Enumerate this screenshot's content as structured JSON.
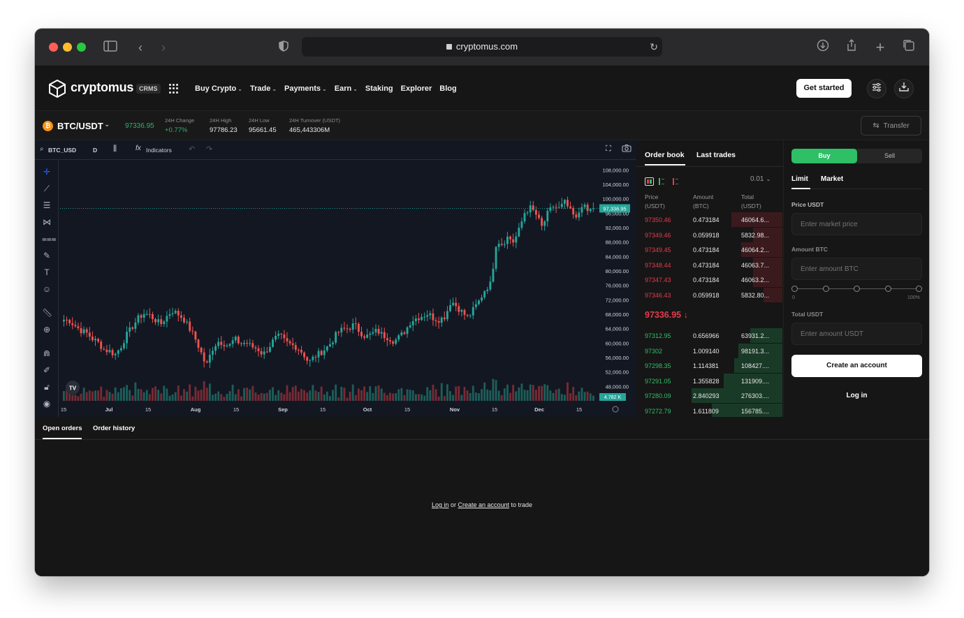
{
  "browser": {
    "url": "cryptomus.com"
  },
  "header": {
    "logo_text": "cryptomus",
    "logo_badge": "CRMS",
    "nav": [
      {
        "label": "Buy Crypto",
        "dropdown": true
      },
      {
        "label": "Trade",
        "dropdown": true
      },
      {
        "label": "Payments",
        "dropdown": true
      },
      {
        "label": "Earn",
        "dropdown": true
      },
      {
        "label": "Staking",
        "dropdown": false
      },
      {
        "label": "Explorer",
        "dropdown": false
      },
      {
        "label": "Blog",
        "dropdown": false
      }
    ],
    "get_started": "Get started"
  },
  "ticker": {
    "coin_symbol": "₿",
    "pair": "BTC/USDT",
    "last_price": "97336.95",
    "change_label": "24H Change",
    "change_value": "+0.77%",
    "high_label": "24H High",
    "high_value": "97786.23",
    "low_label": "24H Low",
    "low_value": "95661.45",
    "turnover_label": "24H Turnover (USDT)",
    "turnover_value": "465,443306M",
    "transfer": "Transfer"
  },
  "chart": {
    "symbol": "BTC_USD",
    "interval": "D",
    "indicators": "Indicators",
    "price_tag": "97,336.95",
    "volume_tag": "4.782 K",
    "tv_logo": "TV",
    "y_ticks": [
      "108,000.00",
      "104,000.00",
      "100,000.00",
      "96,000.00",
      "92,000.00",
      "88,000.00",
      "84,000.00",
      "80,000.00",
      "76,000.00",
      "72,000.00",
      "68,000.00",
      "64,000.00",
      "60,000.00",
      "56,000.00",
      "52,000.00",
      "48,000.00"
    ],
    "x_ticks": [
      "15",
      "Jul",
      "15",
      "Aug",
      "15",
      "Sep",
      "15",
      "Oct",
      "15",
      "Nov",
      "15",
      "Dec",
      "15"
    ]
  },
  "chart_data": {
    "type": "candlestick",
    "title": "",
    "xlabel": "",
    "ylabel": "",
    "ylim": [
      44000,
      110000
    ],
    "x_range": [
      "Jun 15",
      "Dec 18"
    ],
    "last_price": 97336.95,
    "close_path": [
      66500,
      66200,
      64800,
      63500,
      62800,
      61200,
      60200,
      58200,
      57800,
      56800,
      59000,
      62200,
      64500,
      66800,
      68200,
      67800,
      66500,
      65200,
      67300,
      69000,
      68100,
      66800,
      64200,
      61500,
      57800,
      53500,
      58200,
      60500,
      60100,
      59100,
      61200,
      59800,
      60200,
      59000,
      58500,
      56800,
      58900,
      61200,
      62000,
      60200,
      59500,
      58800,
      57200,
      54600,
      56200,
      57300,
      58500,
      60200,
      62800,
      63800,
      64100,
      65200,
      63100,
      61800,
      62400,
      63500,
      62200,
      61500,
      60500,
      61800,
      63500,
      66200,
      67000,
      67600,
      68200,
      66800,
      66500,
      67500,
      71800,
      70200,
      68500,
      67000,
      69500,
      71800,
      75000,
      76500,
      88500,
      87500,
      89500,
      88000,
      91500,
      96500,
      97500,
      95500,
      92000,
      96000,
      98000,
      97300,
      99000,
      96500,
      94200,
      98500,
      96500,
      97336
    ]
  },
  "orderbook": {
    "tab_active": "Order book",
    "tab_other": "Last trades",
    "precision": "0.01",
    "headers": {
      "price": [
        "Price",
        "(USDT)"
      ],
      "amount": [
        "Amount",
        "(BTC)"
      ],
      "total": [
        "Total",
        "(USDT)"
      ]
    },
    "asks": [
      {
        "price": "97350.46",
        "amount": "0.473184",
        "total": "46064.6...",
        "depth": 0.35
      },
      {
        "price": "97349.46",
        "amount": "0.059918",
        "total": "5832.98...",
        "depth": 0.2
      },
      {
        "price": "97349.45",
        "amount": "0.473184",
        "total": "46064.2...",
        "depth": 0.28
      },
      {
        "price": "97348.44",
        "amount": "0.473184",
        "total": "46063.7...",
        "depth": 0.2
      },
      {
        "price": "97347.43",
        "amount": "0.473184",
        "total": "46063.2...",
        "depth": 0.2
      },
      {
        "price": "97346.43",
        "amount": "0.059918",
        "total": "5832.80...",
        "depth": 0.13
      }
    ],
    "mid_price": "97336.95 ↓",
    "bids": [
      {
        "price": "97312.95",
        "amount": "0.656966",
        "total": "63931.2...",
        "depth": 0.22
      },
      {
        "price": "97302",
        "amount": "1.009140",
        "total": "98191.3...",
        "depth": 0.3
      },
      {
        "price": "97298.35",
        "amount": "1.114381",
        "total": "108427....",
        "depth": 0.33
      },
      {
        "price": "97291.05",
        "amount": "1.355828",
        "total": "131909....",
        "depth": 0.4
      },
      {
        "price": "97280.09",
        "amount": "2.840293",
        "total": "276303....",
        "depth": 0.62
      },
      {
        "price": "97272.79",
        "amount": "1.611809",
        "total": "156785....",
        "depth": 0.48
      }
    ]
  },
  "trade": {
    "buy": "Buy",
    "sell": "Sell",
    "tab_limit": "Limit",
    "tab_market": "Market",
    "price_label": "Price USDT",
    "price_placeholder": "Enter market price",
    "amount_label": "Amount BTC",
    "amount_placeholder": "Enter amount BTC",
    "slider_min": "0",
    "slider_max": "100%",
    "slider_value": 0,
    "total_label": "Total USDT",
    "total_placeholder": "Enter amount USDT",
    "create_account": "Create an account",
    "login": "Log in"
  },
  "bottom": {
    "tab_open": "Open orders",
    "tab_history": "Order history",
    "login_link": "Log in",
    "or_text": " or ",
    "create_link": "Create an account",
    "suffix": " to trade"
  },
  "colors": {
    "up": "#26a69a",
    "down": "#ef5350",
    "accent_green": "#2fbf67",
    "ask_red": "#e53b4d"
  }
}
